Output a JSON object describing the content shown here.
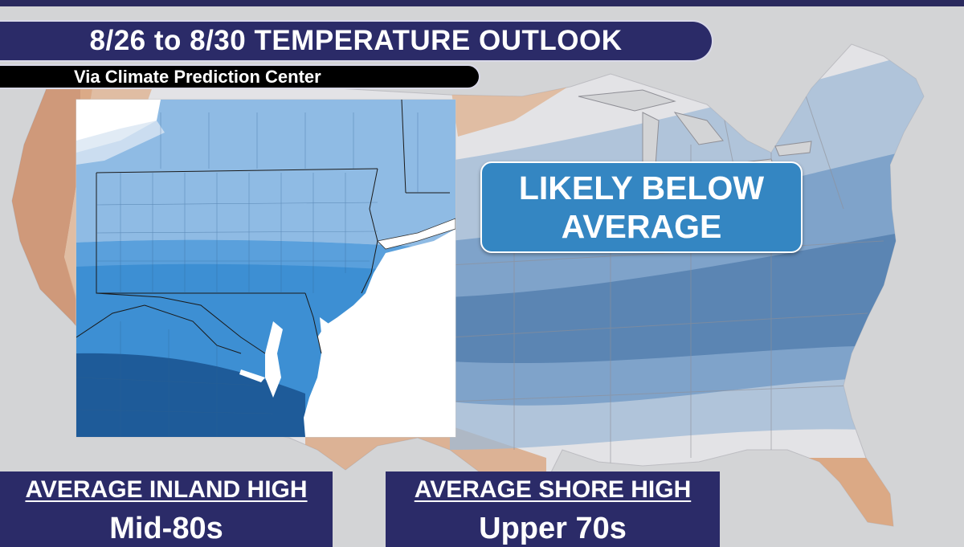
{
  "title": "8/26 to 8/30 TEMPERATURE OUTLOOK",
  "source": "Via Climate Prediction Center",
  "callout": {
    "line1": "LIKELY BELOW",
    "line2": "AVERAGE"
  },
  "inland": {
    "label": "AVERAGE INLAND HIGH",
    "value": "Mid-80s"
  },
  "shore": {
    "label": "AVERAGE SHORE HIGH",
    "value": "Upper 70s"
  },
  "colors": {
    "banner_navy": "#2b2b68",
    "callout_blue": "#3486c2",
    "above_orange": "#d9a27a",
    "below_light_blue": "#8fbbe4",
    "below_mid_blue": "#3d8fd3",
    "below_dark_blue": "#1e5b99",
    "water_white": "#ffffff"
  }
}
